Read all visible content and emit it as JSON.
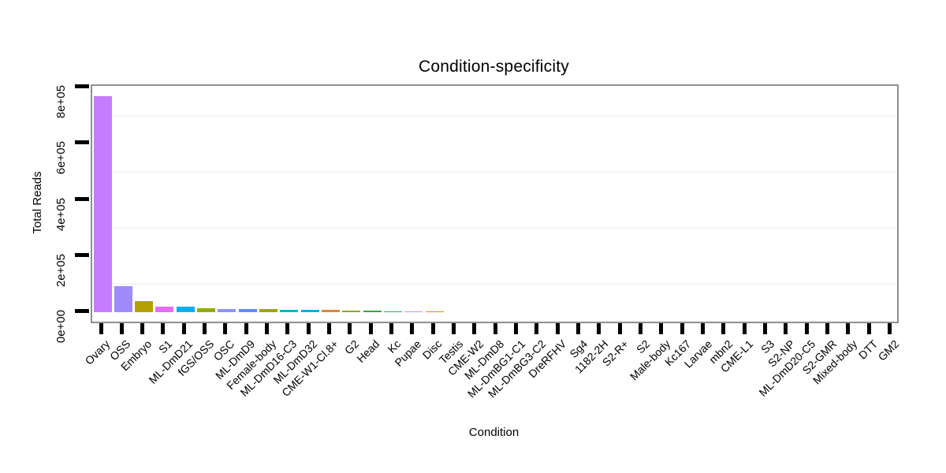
{
  "chart_data": {
    "type": "bar",
    "title": "Condition-specificity",
    "xlabel": "Condition",
    "ylabel": "Total Reads",
    "ylim": [
      0,
      840000
    ],
    "grid": "faint minor gridlines only",
    "legend_position": "none",
    "y_ticks": [
      {
        "value": 0,
        "label": "0e+00"
      },
      {
        "value": 200000,
        "label": "2e+05"
      },
      {
        "value": 400000,
        "label": "4e+05"
      },
      {
        "value": 600000,
        "label": "6e+05"
      },
      {
        "value": 800000,
        "label": "8e+05"
      }
    ],
    "minor_gridline_values": [
      100000,
      300000,
      500000,
      700000
    ],
    "categories": [
      "Ovary",
      "OSS",
      "Embryo",
      "S1",
      "ML-DmD21",
      "fGS/OSS",
      "OSC",
      "ML-DmD9",
      "Female-body",
      "ML-DmD16-C3",
      "ML-DmD32",
      "CME-W1-Cl.8+",
      "G2",
      "Head",
      "Kc",
      "Pupae",
      "Disc",
      "Testis",
      "CME-W2",
      "ML-DmD8",
      "ML-DmBG1-C1",
      "ML-DmBG3-C2",
      "DreRFHV",
      "Sg4",
      "1182-2H",
      "S2-R+",
      "S2",
      "Male-body",
      "Kc167",
      "Larvae",
      "mbn2",
      "CME-L1",
      "S3",
      "S2-NP",
      "ML-DmD20-C5",
      "S2-GMR",
      "Mixed-body",
      "DTT",
      "GM2"
    ],
    "values": [
      768000,
      92000,
      39000,
      20000,
      19000,
      15000,
      12600,
      12200,
      11600,
      9600,
      9000,
      8000,
      4600,
      4300,
      4000,
      3500,
      3200,
      0,
      0,
      0,
      0,
      0,
      0,
      0,
      0,
      0,
      0,
      0,
      0,
      0,
      0,
      0,
      0,
      0,
      0,
      0,
      0,
      0,
      0
    ],
    "bar_colors": [
      "#C77CFF",
      "#A08BFB",
      "#B2A100",
      "#E76BF3",
      "#00B0F6",
      "#8FAD00",
      "#8B93F8",
      "#5C8FF5",
      "#9AA800",
      "#00B5C4",
      "#00ACF0",
      "#E08537",
      "#94A800",
      "#35A93C",
      "#21AD5C",
      "#C793EC",
      "#DB9000",
      "",
      "",
      "",
      "",
      "",
      "",
      "",
      "",
      "",
      "",
      "",
      "",
      "",
      "",
      "",
      "",
      "",
      "",
      "",
      "",
      "",
      ""
    ],
    "panel_border_color": "#8f8f8f",
    "tick_color": "#000000",
    "minor_gridline_color": "#f6f6f6"
  }
}
